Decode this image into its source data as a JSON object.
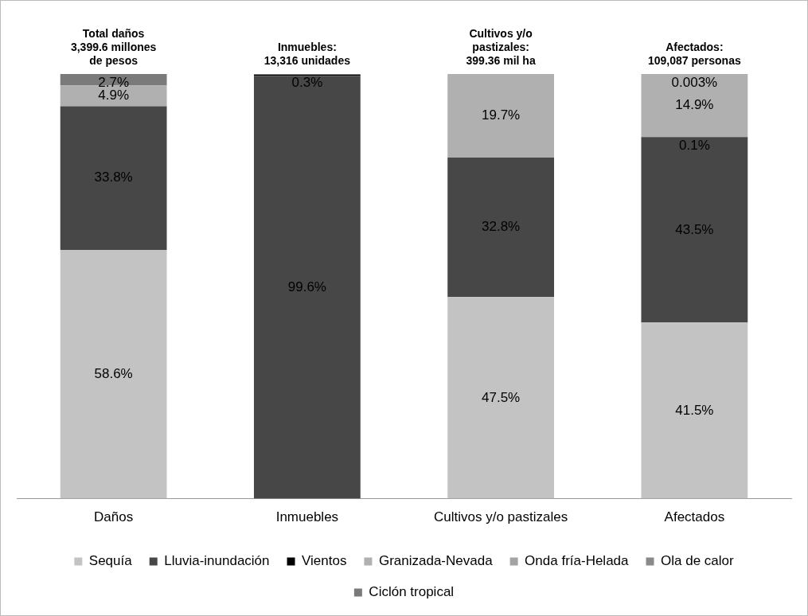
{
  "chart_data": {
    "type": "bar",
    "stacked": true,
    "categories": [
      "Daños",
      "Inmuebles",
      "Cultivos y/o pastizales",
      "Afectados"
    ],
    "series": [
      {
        "name": "Sequía",
        "color": "#c3c3c3",
        "values": [
          58.6,
          null,
          47.5,
          41.5
        ],
        "value_labels": [
          "58.6%",
          null,
          "47.5%",
          "41.5%"
        ]
      },
      {
        "name": "Lluvia-inundación",
        "color": "#474747",
        "values": [
          33.8,
          99.6,
          32.8,
          43.5
        ],
        "value_labels": [
          "33.8%",
          "99.6%",
          "32.8%",
          "43.5%"
        ]
      },
      {
        "name": "Vientos",
        "color": "#000000",
        "values": [
          null,
          0.3,
          null,
          0.1
        ],
        "value_labels": [
          null,
          "0.3%",
          null,
          "0.1%"
        ]
      },
      {
        "name": "Granizada-Nevada",
        "color": "#b0b0b0",
        "values": [
          4.9,
          null,
          19.7,
          14.9
        ],
        "value_labels": [
          "4.9%",
          null,
          "19.7%",
          "14.9%"
        ]
      },
      {
        "name": "Onda fría-Helada",
        "color": "#a3a3a3",
        "values": [
          null,
          null,
          null,
          0.003
        ],
        "value_labels": [
          null,
          null,
          null,
          "0.003%"
        ]
      },
      {
        "name": "Ola de calor",
        "color": "#8a8a8a",
        "values": [
          null,
          null,
          null,
          null
        ]
      },
      {
        "name": "Ciclón tropical",
        "color": "#7a7a7a",
        "values": [
          2.7,
          null,
          null,
          null
        ],
        "value_labels": [
          "2.7%",
          null,
          null,
          null
        ]
      }
    ],
    "ylim": [
      0,
      100
    ],
    "tick_labels": "x",
    "grid": false,
    "legend": "bottom",
    "annotations": [
      "Total daños\n3,399.6 millones\nde pesos",
      "Inmuebles:\n13,316 unidades",
      "Cultivos y/o\npastizales:\n399.36 mil ha",
      "Afectados:\n109,087 personas"
    ]
  }
}
